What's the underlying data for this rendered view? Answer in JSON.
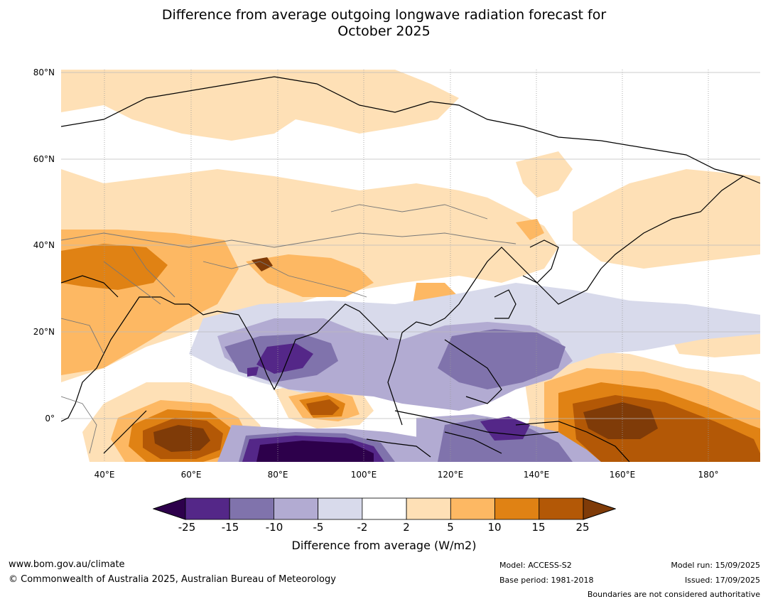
{
  "title": {
    "line1": "Difference from average outgoing longwave radiation forecast for",
    "line2": "October 2025"
  },
  "map": {
    "lat_labels": [
      "80°N",
      "60°N",
      "40°N",
      "20°N",
      "0°"
    ],
    "lon_labels": [
      "40°E",
      "60°E",
      "80°E",
      "100°E",
      "120°E",
      "140°E",
      "160°E",
      "180°"
    ]
  },
  "colorbar": {
    "ticks": [
      "-25",
      "-15",
      "-10",
      "-5",
      "-2",
      "2",
      "5",
      "10",
      "15",
      "25"
    ],
    "colors": [
      "#2d004b",
      "#542788",
      "#8073ac",
      "#b2abd2",
      "#d8daeb",
      "#ffffff",
      "#fee0b6",
      "#fdb863",
      "#e08214",
      "#b35806",
      "#7f3b08"
    ],
    "label": "Difference from average (W/m2)"
  },
  "footer": {
    "website": "www.bom.gov.au/climate",
    "copyright": "© Commonwealth of Australia 2025, Australian Bureau of Meteorology",
    "model": "Model: ACCESS-S2",
    "base_period": "Base period: 1981-2018",
    "model_run": "Model run: 15/09/2025",
    "issued": "Issued: 17/09/2025",
    "disclaimer": "Boundaries are not considered authoritative"
  }
}
